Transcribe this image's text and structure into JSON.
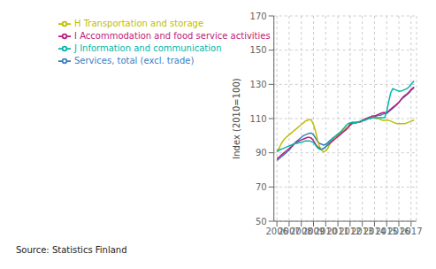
{
  "chart_data": {
    "type": "line",
    "ylabel": "Index (2010=100)",
    "annotations": [
      "Source: Statistics Finland"
    ],
    "xlim": [
      2005.75,
      2017.45
    ],
    "xticks": [
      2006,
      2007,
      2008,
      2009,
      2010,
      2011,
      2012,
      2013,
      2014,
      2015,
      2016,
      2017
    ],
    "ylim": [
      50,
      170
    ],
    "yticks": [
      50,
      70,
      90,
      110,
      130,
      150,
      170
    ],
    "grid": true,
    "legend": "upper left",
    "x": [
      2006.0,
      2006.17,
      2006.33,
      2006.5,
      2006.67,
      2006.83,
      2007.0,
      2007.17,
      2007.33,
      2007.5,
      2007.67,
      2007.83,
      2008.0,
      2008.17,
      2008.33,
      2008.5,
      2008.67,
      2008.83,
      2009.0,
      2009.17,
      2009.33,
      2009.5,
      2009.67,
      2009.83,
      2010.0,
      2010.17,
      2010.33,
      2010.5,
      2010.67,
      2010.83,
      2011.0,
      2011.17,
      2011.33,
      2011.5,
      2011.67,
      2011.83,
      2012.0,
      2012.17,
      2012.33,
      2012.5,
      2012.67,
      2012.83,
      2013.0,
      2013.17,
      2013.33,
      2013.5,
      2013.67,
      2013.83,
      2014.0,
      2014.17,
      2014.33,
      2014.5,
      2014.67,
      2014.83,
      2015.0,
      2015.17,
      2015.33,
      2015.5,
      2015.67,
      2015.83,
      2016.0,
      2016.17,
      2016.33,
      2016.5,
      2016.67,
      2016.83,
      2017.0,
      2017.25
    ],
    "series": [
      {
        "name": "Services, total (excl. trade)",
        "color": "#3A7EBF",
        "values": [
          85.5,
          86.5,
          87.5,
          88.5,
          89.5,
          90.5,
          91.5,
          93.0,
          94.5,
          96.0,
          97.0,
          98.0,
          99.0,
          100.0,
          100.5,
          101.0,
          101.5,
          101.5,
          100.5,
          98.5,
          96.5,
          95.5,
          95.0,
          94.5,
          95.0,
          96.0,
          97.0,
          98.0,
          99.0,
          99.5,
          100.0,
          101.0,
          102.0,
          103.0,
          104.0,
          105.0,
          106.0,
          107.0,
          107.5,
          107.5,
          108.0,
          108.0,
          108.5,
          109.0,
          109.5,
          110.0,
          110.0,
          110.5,
          111.0,
          111.5,
          112.0,
          112.0,
          112.5,
          113.0,
          113.0,
          114.0,
          115.0,
          116.0,
          117.0,
          118.0,
          119.5,
          121.0,
          122.0,
          123.0,
          124.0,
          125.0,
          126.5,
          128.0
        ]
      },
      {
        "name": "H Transportation and storage",
        "color": "#BFBC00",
        "values": [
          91.0,
          92.5,
          95.0,
          97.0,
          98.5,
          99.5,
          100.5,
          101.5,
          102.5,
          103.5,
          104.5,
          105.5,
          106.5,
          107.5,
          108.5,
          109.0,
          109.5,
          109.0,
          106.5,
          102.5,
          97.5,
          93.5,
          91.5,
          90.5,
          91.0,
          92.5,
          95.0,
          97.0,
          98.5,
          99.5,
          100.5,
          101.5,
          102.5,
          103.5,
          104.5,
          105.5,
          107.0,
          108.0,
          108.0,
          108.0,
          108.0,
          108.0,
          109.0,
          109.5,
          110.0,
          110.5,
          110.5,
          110.5,
          110.5,
          110.0,
          110.0,
          109.5,
          109.0,
          109.0,
          109.0,
          109.0,
          108.5,
          108.0,
          107.5,
          107.0,
          107.0,
          107.0,
          107.0,
          107.0,
          107.5,
          108.0,
          108.5,
          109.0
        ]
      },
      {
        "name": "I Accommodation and food service activities",
        "color": "#BF1A7A",
        "values": [
          86.5,
          87.5,
          88.5,
          89.5,
          90.5,
          91.5,
          92.5,
          93.5,
          94.5,
          95.5,
          96.5,
          97.0,
          97.5,
          98.0,
          98.5,
          99.0,
          99.0,
          98.5,
          97.0,
          95.0,
          93.5,
          92.5,
          92.0,
          92.5,
          93.5,
          94.5,
          95.5,
          96.5,
          97.5,
          98.5,
          99.5,
          100.5,
          101.5,
          102.5,
          103.5,
          104.5,
          106.5,
          107.5,
          107.5,
          107.5,
          108.0,
          108.0,
          109.0,
          109.5,
          110.0,
          110.5,
          111.0,
          111.5,
          111.5,
          112.0,
          112.5,
          113.0,
          113.5,
          113.5,
          113.5,
          114.5,
          115.5,
          116.5,
          117.5,
          118.5,
          119.5,
          121.0,
          122.5,
          123.5,
          124.5,
          125.5,
          127.0,
          128.5
        ]
      },
      {
        "name": "J Information and communication",
        "color": "#00B5AA",
        "values": [
          90.5,
          91.5,
          92.0,
          92.5,
          93.0,
          93.5,
          94.0,
          94.5,
          95.0,
          95.5,
          95.5,
          96.0,
          96.0,
          96.5,
          97.0,
          97.0,
          97.0,
          96.5,
          96.0,
          94.5,
          93.0,
          92.0,
          92.0,
          92.5,
          93.5,
          95.0,
          96.5,
          98.0,
          99.0,
          100.0,
          101.0,
          102.0,
          103.0,
          104.5,
          106.0,
          107.0,
          107.5,
          107.5,
          107.5,
          107.5,
          108.0,
          108.5,
          109.0,
          109.0,
          109.5,
          110.0,
          110.5,
          110.5,
          110.5,
          110.5,
          110.5,
          110.5,
          110.5,
          110.5,
          114.0,
          120.0,
          125.0,
          127.5,
          127.0,
          126.5,
          126.0,
          126.0,
          126.5,
          127.0,
          127.5,
          128.5,
          130.0,
          132.0
        ]
      }
    ]
  }
}
